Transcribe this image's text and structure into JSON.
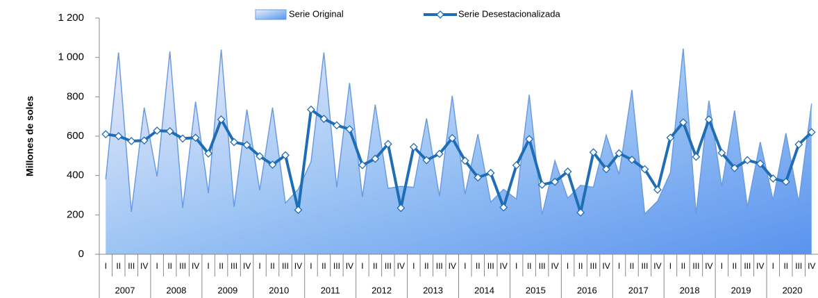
{
  "chart_data": {
    "type": "line",
    "y_label": "Millones de soles",
    "categories": [
      "I",
      "II",
      "III",
      "IV",
      "I",
      "II",
      "III",
      "IV",
      "I",
      "II",
      "III",
      "IV",
      "I",
      "II",
      "III",
      "IV",
      "I",
      "II",
      "III",
      "IV",
      "I",
      "II",
      "III",
      "IV",
      "I",
      "II",
      "III",
      "IV",
      "I",
      "II",
      "III",
      "IV",
      "I",
      "II",
      "III",
      "IV",
      "I",
      "II",
      "III",
      "IV",
      "I",
      "II",
      "III",
      "IV",
      "I",
      "II",
      "III",
      "IV",
      "I",
      "II",
      "III",
      "IV",
      "I",
      "II",
      "III",
      "IV"
    ],
    "years": [
      "2007",
      "2008",
      "2009",
      "2010",
      "2011",
      "2012",
      "2013",
      "2014",
      "2015",
      "2016",
      "2017",
      "2018",
      "2019",
      "2020"
    ],
    "ylim": [
      0,
      1200
    ],
    "yticks": [
      0,
      200,
      400,
      600,
      800,
      {
        "value": 1000,
        "label": "1 000"
      },
      {
        "value": 1200,
        "label": "1 200"
      }
    ],
    "series": [
      {
        "name": "Serie Original",
        "type": "area",
        "color": "#6b9be0",
        "values": [
          380,
          1025,
          215,
          745,
          395,
          1030,
          235,
          775,
          310,
          1040,
          240,
          735,
          325,
          745,
          260,
          330,
          470,
          1025,
          340,
          870,
          290,
          760,
          335,
          345,
          340,
          690,
          295,
          805,
          305,
          610,
          265,
          330,
          280,
          810,
          200,
          475,
          285,
          350,
          340,
          605,
          405,
          835,
          205,
          270,
          415,
          1045,
          205,
          780,
          345,
          730,
          240,
          570,
          275,
          615,
          265,
          765
        ]
      },
      {
        "name": "Serie Desestacionalizada",
        "type": "line",
        "color": "#1f6db5",
        "values": [
          610,
          600,
          575,
          578,
          628,
          625,
          588,
          592,
          512,
          685,
          570,
          555,
          498,
          455,
          503,
          225,
          735,
          688,
          655,
          635,
          453,
          485,
          560,
          235,
          545,
          478,
          510,
          590,
          475,
          390,
          413,
          238,
          452,
          585,
          353,
          368,
          420,
          212,
          518,
          432,
          513,
          480,
          432,
          328,
          592,
          670,
          495,
          685,
          515,
          438,
          478,
          460,
          385,
          368,
          558,
          620
        ]
      }
    ]
  }
}
